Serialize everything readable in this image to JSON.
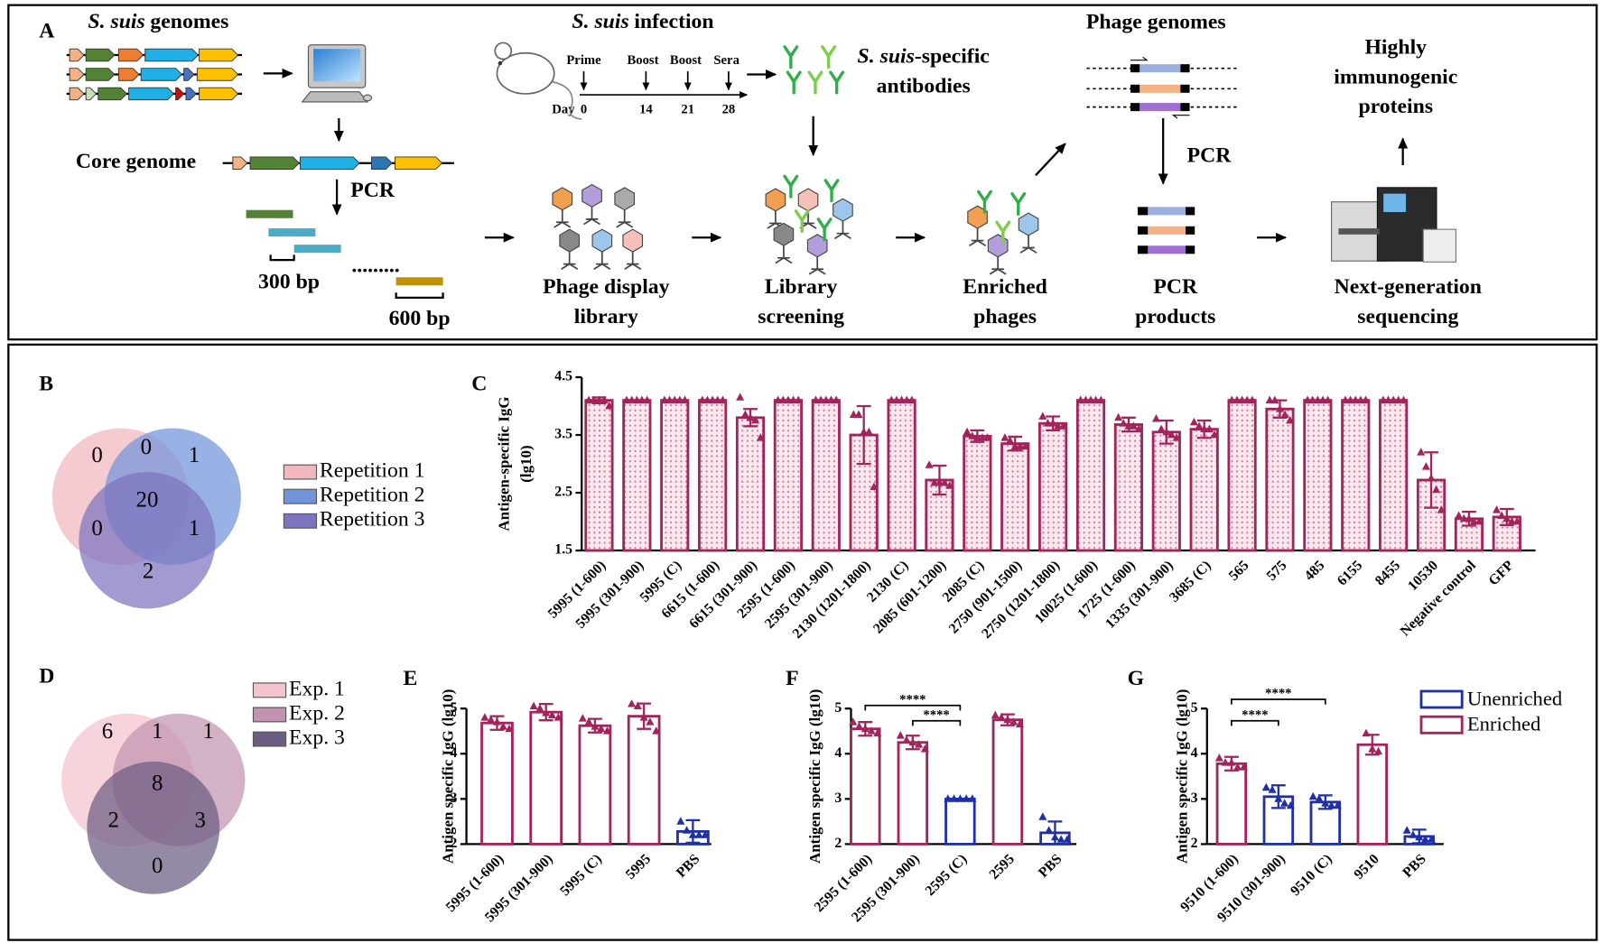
{
  "panel_a": {
    "label": "A",
    "genomes": {
      "italic": "S. suis",
      "text": "genomes"
    },
    "core_genome": "Core genome",
    "pcr_1": "PCR",
    "fragment_300": "300 bp",
    "fragment_600": "600 bp",
    "infection": {
      "italic": "S. suis",
      "text": "infection"
    },
    "timeline": {
      "events": [
        "Prime",
        "Boost",
        "Boost",
        "Sera"
      ],
      "day_label": "Day",
      "days": [
        "0",
        "14",
        "21",
        "28"
      ]
    },
    "antibodies": {
      "italic": "S. suis",
      "text": "-specific",
      "line2": "antibodies"
    },
    "phage_genomes": "Phage genomes",
    "pcr_2": "PCR",
    "result": [
      "Highly",
      "immunogenic",
      "proteins"
    ],
    "steps": [
      [
        "Phage display",
        "library"
      ],
      [
        "Library",
        "screening"
      ],
      [
        "Enriched",
        "phages"
      ],
      [
        "PCR",
        "products"
      ],
      [
        "Next-generation",
        "sequencing"
      ]
    ]
  },
  "venn_b": {
    "label": "B",
    "regions": [
      0,
      0,
      1,
      20,
      0,
      1,
      2
    ],
    "sets": [
      {
        "name": "Repetition 1",
        "color": "#f2b6bf"
      },
      {
        "name": "Repetition 2",
        "color": "#7194dd"
      },
      {
        "name": "Repetition 3",
        "color": "#7d74bf"
      }
    ]
  },
  "venn_d": {
    "label": "D",
    "regions": [
      6,
      1,
      1,
      8,
      2,
      3,
      0
    ],
    "sets": [
      {
        "name": "Exp. 1",
        "color": "#f4c3cd"
      },
      {
        "name": "Exp. 2",
        "color": "#c293b0"
      },
      {
        "name": "Exp. 3",
        "color": "#6c5d82"
      }
    ]
  },
  "chart_data": [
    {
      "type": "bar",
      "panel": "C",
      "ylabel": [
        "Antigen-specific IgG",
        "(lg10)"
      ],
      "categories": [
        "5995 (1-600)",
        "5995 (301-900)",
        "5995 (C)",
        "6615 (1-600)",
        "6615 (301-900)",
        "2595 (1-600)",
        "2595 (301-900)",
        "2130 (1201-1800)",
        "2130 (C)",
        "2085 (601-1200)",
        "2085 (C)",
        "2750 (901-1500)",
        "2750 (1201-1800)",
        "10025 (1-600)",
        "1725 (1-600)",
        "1335 (301-900)",
        "3685 (C)",
        "565",
        "575",
        "485",
        "6155",
        "8455",
        "10530",
        "Negative control",
        "GFP"
      ],
      "values": [
        4.1,
        4.1,
        4.1,
        4.1,
        3.8,
        4.1,
        4.1,
        3.5,
        4.1,
        2.72,
        3.48,
        3.35,
        3.7,
        4.1,
        3.68,
        3.55,
        3.6,
        4.1,
        3.95,
        4.1,
        4.1,
        4.1,
        2.72,
        2.05,
        2.08
      ],
      "errors": [
        0.05,
        0,
        0,
        0,
        0.15,
        0,
        0,
        0.5,
        0,
        0.25,
        0.1,
        0.12,
        0.12,
        0,
        0.12,
        0.2,
        0.15,
        0,
        0.15,
        0,
        0,
        0,
        0.48,
        0.12,
        0.14
      ],
      "points": [
        [
          4.1,
          4.1,
          4.1,
          4.1,
          4.0
        ],
        [
          4.1,
          4.1,
          4.1,
          4.1,
          4.1
        ],
        [
          4.1,
          4.1,
          4.1,
          4.1,
          4.1
        ],
        [
          4.1,
          4.1,
          4.1,
          4.1,
          4.1
        ],
        [
          4.15,
          3.85,
          3.8,
          3.75,
          3.45
        ],
        [
          4.1,
          4.1,
          4.1,
          4.1,
          4.1
        ],
        [
          4.1,
          4.1,
          4.1,
          4.1,
          4.1
        ],
        [
          3.85,
          3.85,
          3.55,
          3.55,
          2.6
        ],
        [
          4.1,
          4.1,
          4.1,
          4.1,
          4.1
        ],
        [
          2.98,
          2.67,
          2.67,
          2.67,
          2.62
        ],
        [
          3.55,
          3.48,
          3.45,
          3.45,
          3.45
        ],
        [
          3.45,
          3.4,
          3.3,
          3.3,
          3.3
        ],
        [
          3.82,
          3.7,
          3.7,
          3.65,
          3.65
        ],
        [
          4.1,
          4.1,
          4.1,
          4.1,
          4.1
        ],
        [
          3.8,
          3.7,
          3.65,
          3.65,
          3.6
        ],
        [
          3.78,
          3.6,
          3.55,
          3.5,
          3.45
        ],
        [
          3.72,
          3.65,
          3.6,
          3.6,
          3.5
        ],
        [
          4.1,
          4.1,
          4.1,
          4.1,
          4.1
        ],
        [
          4.1,
          4.1,
          3.95,
          3.85,
          3.75
        ],
        [
          4.1,
          4.1,
          4.1,
          4.1,
          4.1
        ],
        [
          4.1,
          4.1,
          4.1,
          4.1,
          4.1
        ],
        [
          4.1,
          4.1,
          4.1,
          4.1,
          4.1
        ],
        [
          3.2,
          2.95,
          2.75,
          2.55,
          2.2
        ],
        [
          2.1,
          2.05,
          2.05,
          2.0,
          2.0
        ],
        [
          2.2,
          2.1,
          2.05,
          2.0,
          2.0
        ]
      ],
      "color": "#a3235b",
      "pattern": "dotted",
      "ylim": [
        1.5,
        4.5
      ],
      "yticks": [
        1.5,
        2.5,
        3.5,
        4.5
      ]
    },
    {
      "type": "bar",
      "panel": "E",
      "ylabel": [
        "Antigen specific IgG (lg10)"
      ],
      "categories": [
        "5995 (1-600)",
        "5995 (301-900)",
        "5995 (C)",
        "5995",
        "PBS"
      ],
      "values": [
        4.68,
        4.92,
        4.62,
        4.83,
        2.28
      ],
      "errors": [
        0.15,
        0.18,
        0.15,
        0.28,
        0.25
      ],
      "points": [
        [
          4.8,
          4.75,
          4.7,
          4.6,
          4.55
        ],
        [
          5.05,
          5.0,
          4.9,
          4.85,
          4.8
        ],
        [
          4.78,
          4.7,
          4.6,
          4.55,
          4.5
        ],
        [
          5.1,
          5.05,
          4.8,
          4.7,
          4.5
        ],
        [
          2.5,
          2.3,
          2.2,
          2.2,
          2.2
        ]
      ],
      "colors": [
        "#a3235b",
        "#a3235b",
        "#a3235b",
        "#a3235b",
        "#1f2fa8"
      ],
      "ylim": [
        2,
        5
      ],
      "yticks": [
        2,
        3,
        4,
        5
      ]
    },
    {
      "type": "bar",
      "panel": "F",
      "ylabel": [
        "Antigen specific IgG (lg10)"
      ],
      "categories": [
        "2595 (1-600)",
        "2595 (301-900)",
        "2595 (C)",
        "2595",
        "PBS"
      ],
      "values": [
        4.55,
        4.25,
        3.0,
        4.75,
        2.25
      ],
      "errors": [
        0.15,
        0.15,
        0,
        0.12,
        0.25
      ],
      "points": [
        [
          4.7,
          4.6,
          4.55,
          4.5,
          4.45
        ],
        [
          4.4,
          4.3,
          4.25,
          4.2,
          4.1
        ],
        [
          3,
          3,
          3,
          3,
          3
        ],
        [
          4.85,
          4.8,
          4.75,
          4.7,
          4.65
        ],
        [
          2.6,
          2.3,
          2.15,
          2.1,
          2.1
        ]
      ],
      "colors": [
        "#a3235b",
        "#a3235b",
        "#1f2fa8",
        "#a3235b",
        "#1f2fa8"
      ],
      "ylim": [
        2,
        5
      ],
      "yticks": [
        2,
        3,
        4,
        5
      ],
      "significance": [
        {
          "from": 0,
          "to": 2,
          "label": "****"
        },
        {
          "from": 1,
          "to": 2,
          "label": "****"
        }
      ]
    },
    {
      "type": "bar",
      "panel": "G",
      "ylabel": [
        "Antigen specific IgG (lg10)"
      ],
      "categories": [
        "9510 (1-600)",
        "9510 (301-900)",
        "9510 (C)",
        "9510",
        "PBS"
      ],
      "values": [
        3.78,
        3.05,
        2.93,
        4.2,
        2.17
      ],
      "errors": [
        0.15,
        0.25,
        0.15,
        0.22,
        0.15
      ],
      "points": [
        [
          3.9,
          3.8,
          3.8,
          3.7,
          3.7
        ],
        [
          3.25,
          3.2,
          3.0,
          2.9,
          2.85
        ],
        [
          3.05,
          3.0,
          2.9,
          2.85,
          2.85
        ],
        [
          4.45,
          4.1,
          4.05
        ],
        [
          2.3,
          2.2,
          2.15,
          2.1,
          2.1
        ]
      ],
      "colors": [
        "#a3235b",
        "#1f2fa8",
        "#1f2fa8",
        "#a3235b",
        "#1f2fa8"
      ],
      "ylim": [
        2,
        5
      ],
      "yticks": [
        2,
        3,
        4,
        5
      ],
      "significance": [
        {
          "from": 0,
          "to": 1,
          "label": "****"
        },
        {
          "from": 0,
          "to": 2,
          "label": "****"
        }
      ],
      "legend": [
        {
          "name": "Unenriched",
          "color": "#1f2fa8"
        },
        {
          "name": "Enriched",
          "color": "#a3235b"
        }
      ]
    }
  ]
}
